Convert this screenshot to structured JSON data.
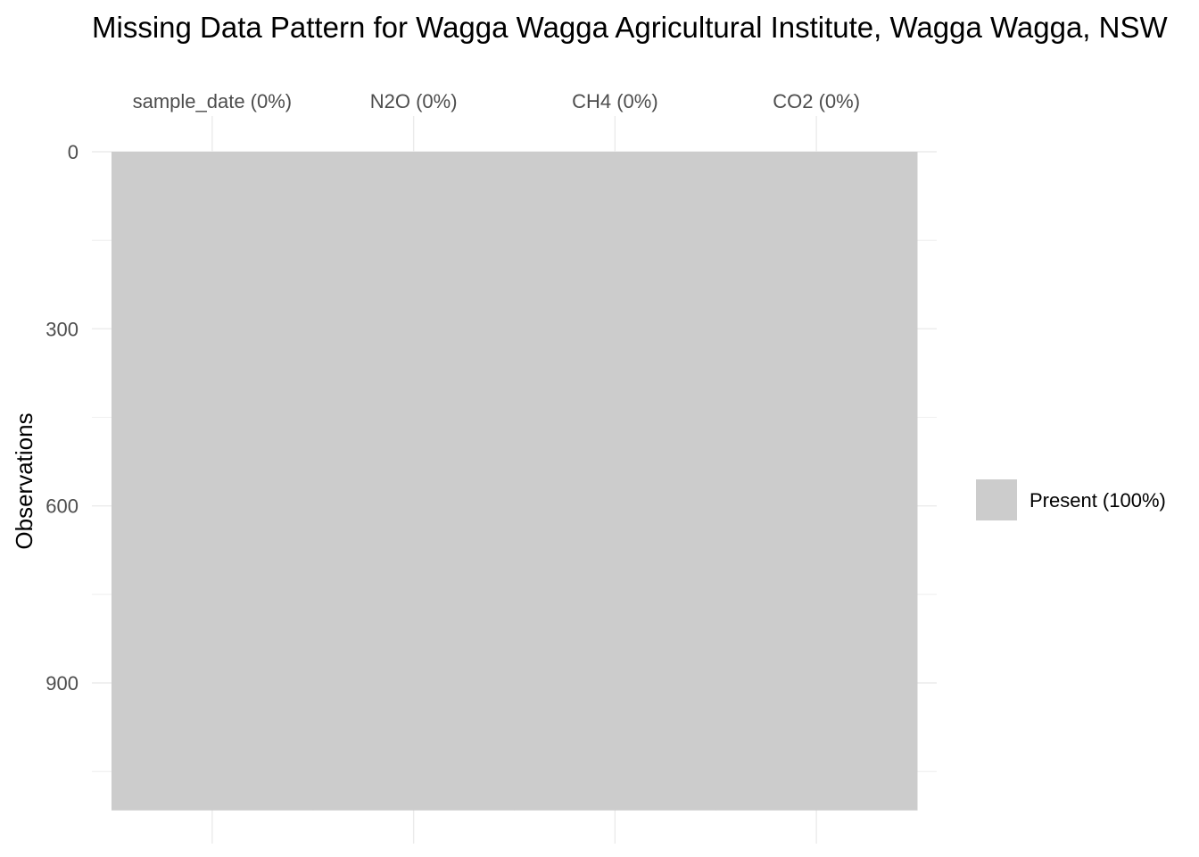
{
  "chart_data": {
    "type": "heatmap",
    "title": "Missing Data Pattern for Wagga Wagga Agricultural Institute, Wagga Wagga, NSW",
    "xlabel": "",
    "ylabel": "Observations",
    "columns": [
      "sample_date (0%)",
      "N2O (0%)",
      "CH4 (0%)",
      "CO2 (0%)"
    ],
    "y_ticks": [
      0,
      300,
      600,
      900
    ],
    "ylim": [
      0,
      1116
    ],
    "grid": true,
    "legend_position": "right",
    "categories": [
      {
        "name": "Present (100%)",
        "color": "#cccccc"
      }
    ],
    "cells": [
      {
        "column": "sample_date (0%)",
        "from": 0,
        "to": 1116,
        "status": "Present (100%)"
      },
      {
        "column": "N2O (0%)",
        "from": 0,
        "to": 1116,
        "status": "Present (100%)"
      },
      {
        "column": "CH4 (0%)",
        "from": 0,
        "to": 1116,
        "status": "Present (100%)"
      },
      {
        "column": "CO2 (0%)",
        "from": 0,
        "to": 1116,
        "status": "Present (100%)"
      }
    ]
  },
  "colors": {
    "present": "#cccccc",
    "grid": "#ebebeb",
    "tick_text": "#4d4d4d"
  }
}
